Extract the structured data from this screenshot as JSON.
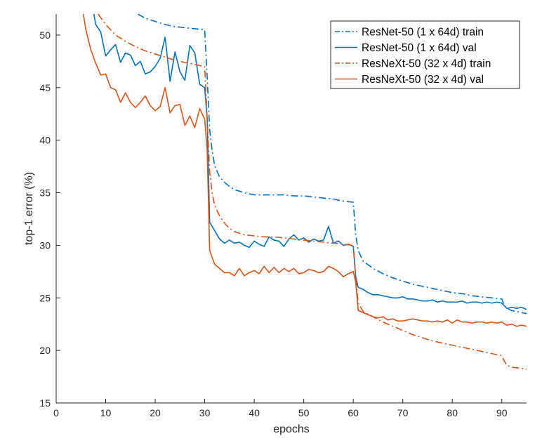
{
  "chart_data": {
    "type": "line",
    "title": "",
    "xlabel": "epochs",
    "ylabel": "top-1 error (%)",
    "xlim": [
      0,
      95
    ],
    "ylim": [
      15,
      52
    ],
    "xticks": [
      0,
      10,
      20,
      30,
      40,
      50,
      60,
      70,
      80,
      90
    ],
    "yticks": [
      15,
      20,
      25,
      30,
      35,
      40,
      45,
      50
    ],
    "grid": false,
    "legend_position": "top-right",
    "colors": {
      "resnet": "#0072BD",
      "resnext": "#D95319"
    },
    "series": [
      {
        "name": "ResNet-50 (1 x 64d) train",
        "style": "dash-dot",
        "color": "#0072BD",
        "x": [
          16.5,
          18,
          20,
          22,
          24,
          26,
          28,
          30,
          30.5,
          31,
          31.5,
          32,
          33,
          34,
          35,
          36,
          38,
          40,
          42,
          44,
          46,
          48,
          50,
          52,
          54,
          56,
          58,
          60,
          60.5,
          61,
          62,
          64,
          66,
          68,
          70,
          72,
          74,
          76,
          78,
          80,
          82,
          84,
          86,
          88,
          90,
          90.5,
          91,
          92,
          93,
          94,
          95
        ],
        "y": [
          52,
          51.6,
          51.3,
          51.0,
          50.8,
          50.7,
          50.6,
          50.5,
          46.0,
          41.0,
          39.0,
          37.6,
          36.5,
          36.0,
          35.6,
          35.3,
          35.0,
          34.8,
          34.8,
          34.8,
          34.8,
          34.7,
          34.7,
          34.6,
          34.5,
          34.4,
          34.2,
          34.1,
          31.0,
          29.5,
          28.5,
          27.8,
          27.3,
          26.9,
          26.6,
          26.3,
          26.1,
          25.9,
          25.7,
          25.5,
          25.4,
          25.2,
          25.1,
          25.0,
          24.9,
          24.3,
          24.0,
          23.8,
          23.7,
          23.6,
          23.5
        ]
      },
      {
        "name": "ResNet-50 (1 x 64d) val",
        "style": "solid",
        "color": "#0072BD",
        "x": [
          6,
          7,
          8,
          9,
          10,
          11,
          12,
          13,
          14,
          15,
          16,
          17,
          18,
          19,
          20,
          21,
          22,
          23,
          24,
          25,
          26,
          27,
          28,
          29,
          30,
          30.5,
          31,
          32,
          33,
          34,
          35,
          36,
          37,
          38,
          39,
          40,
          41,
          42,
          43,
          44,
          45,
          46,
          47,
          48,
          49,
          50,
          51,
          52,
          53,
          54,
          55,
          56,
          57,
          58,
          59,
          60,
          60.5,
          61,
          62,
          63,
          64,
          65,
          66,
          67,
          68,
          69,
          70,
          71,
          72,
          73,
          74,
          75,
          76,
          77,
          78,
          79,
          80,
          81,
          82,
          83,
          84,
          85,
          86,
          87,
          88,
          89,
          90,
          91,
          92,
          93,
          94,
          95
        ],
        "y": [
          52,
          53.5,
          51.0,
          50.3,
          48.0,
          48.6,
          49.1,
          47.4,
          48.3,
          48.1,
          47.1,
          47.5,
          46.3,
          46.5,
          47.0,
          47.8,
          49.8,
          45.6,
          48.4,
          46.5,
          45.7,
          49.0,
          48.3,
          45.3,
          45.0,
          42.0,
          32.2,
          31.4,
          30.6,
          30.2,
          30.5,
          30.2,
          30.3,
          30.0,
          29.8,
          30.4,
          30.1,
          29.9,
          30.8,
          30.5,
          30.4,
          29.9,
          30.6,
          31.0,
          30.5,
          30.7,
          30.3,
          30.6,
          30.4,
          30.5,
          31.8,
          30.2,
          30.4,
          30.0,
          30.1,
          29.9,
          27.0,
          26.0,
          25.8,
          25.5,
          25.3,
          25.3,
          25.2,
          25.1,
          25.0,
          25.0,
          25.1,
          24.9,
          24.9,
          24.8,
          24.7,
          24.7,
          24.8,
          24.6,
          24.7,
          24.6,
          24.6,
          24.6,
          24.7,
          24.5,
          24.6,
          24.6,
          24.5,
          24.6,
          24.5,
          24.6,
          24.5,
          24.0,
          24.1,
          24.0,
          24.1,
          23.9
        ]
      },
      {
        "name": "ResNeXt-50 (32 x 4d) train",
        "style": "dash-dot",
        "color": "#D95319",
        "x": [
          8.5,
          10,
          12,
          14,
          16,
          18,
          20,
          22,
          24,
          26,
          28,
          30,
          30.5,
          31,
          31.5,
          32,
          33,
          34,
          35,
          36,
          38,
          40,
          42,
          44,
          46,
          48,
          50,
          52,
          54,
          56,
          58,
          60,
          60.5,
          61,
          62,
          64,
          66,
          68,
          70,
          72,
          74,
          76,
          78,
          80,
          82,
          84,
          86,
          88,
          90,
          90.5,
          91,
          92,
          93,
          94,
          95
        ],
        "y": [
          52,
          51.0,
          50.0,
          49.4,
          48.9,
          48.5,
          48.2,
          47.9,
          47.6,
          47.4,
          47.2,
          47.0,
          42.0,
          37.0,
          35.0,
          33.8,
          32.8,
          32.1,
          31.6,
          31.3,
          31.0,
          30.9,
          30.8,
          30.8,
          30.7,
          30.6,
          30.5,
          30.4,
          30.3,
          30.2,
          30.1,
          30.0,
          27.0,
          24.5,
          23.7,
          23.2,
          22.7,
          22.3,
          21.9,
          21.5,
          21.2,
          20.9,
          20.7,
          20.5,
          20.3,
          20.1,
          19.9,
          19.7,
          19.5,
          19.0,
          18.6,
          18.4,
          18.35,
          18.3,
          18.2
        ]
      },
      {
        "name": "ResNeXt-50 (32 x 4d) val",
        "style": "solid",
        "color": "#D95319",
        "x": [
          5.5,
          6,
          7,
          8,
          9,
          10,
          11,
          12,
          13,
          14,
          15,
          16,
          17,
          18,
          19,
          20,
          21,
          22,
          23,
          24,
          25,
          26,
          27,
          28,
          29,
          30,
          30.5,
          31,
          32,
          33,
          34,
          35,
          36,
          37,
          38,
          39,
          40,
          41,
          42,
          43,
          44,
          45,
          46,
          47,
          48,
          49,
          50,
          51,
          52,
          53,
          54,
          55,
          56,
          57,
          58,
          59,
          60,
          60.5,
          61,
          62,
          63,
          64,
          65,
          66,
          67,
          68,
          69,
          70,
          71,
          72,
          73,
          74,
          75,
          76,
          77,
          78,
          79,
          80,
          81,
          82,
          83,
          84,
          85,
          86,
          87,
          88,
          89,
          90,
          91,
          92,
          93,
          94,
          95
        ],
        "y": [
          52,
          50.5,
          48.6,
          47.3,
          46.2,
          46.3,
          45.0,
          44.8,
          43.6,
          44.5,
          43.6,
          43.1,
          43.6,
          44.2,
          43.3,
          42.8,
          43.2,
          45.0,
          42.6,
          43.3,
          43.4,
          41.4,
          42.3,
          41.2,
          43.0,
          42.0,
          39.0,
          29.5,
          28.2,
          27.8,
          27.4,
          27.4,
          27.1,
          27.8,
          27.1,
          27.4,
          27.6,
          27.3,
          28.0,
          27.4,
          27.9,
          27.4,
          27.8,
          27.5,
          27.8,
          27.3,
          27.4,
          27.7,
          27.6,
          27.4,
          27.5,
          28.0,
          27.8,
          27.5,
          27.0,
          27.3,
          27.5,
          26.5,
          23.8,
          23.6,
          23.4,
          23.2,
          23.1,
          23.2,
          22.9,
          23.0,
          22.8,
          22.8,
          22.9,
          23.0,
          22.9,
          22.8,
          22.8,
          22.7,
          22.8,
          22.7,
          22.9,
          22.6,
          22.9,
          22.7,
          22.7,
          22.6,
          22.7,
          22.7,
          22.6,
          22.7,
          22.6,
          22.7,
          22.4,
          22.5,
          22.3,
          22.4,
          22.3
        ]
      }
    ]
  }
}
